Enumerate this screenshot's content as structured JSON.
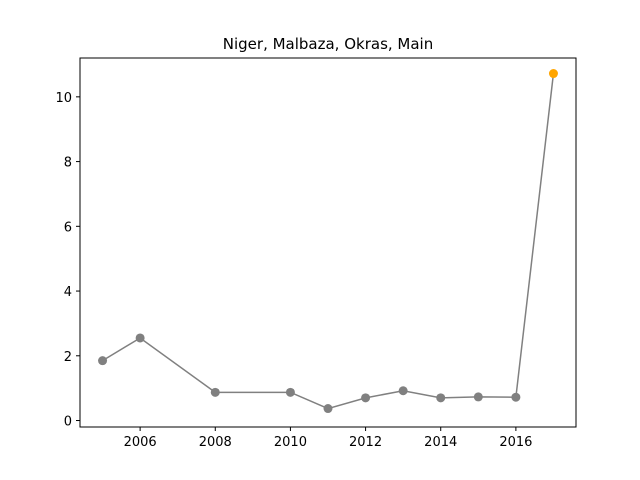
{
  "chart_data": {
    "type": "line",
    "title": "Niger, Malbaza, Okras, Main",
    "xlabel": "",
    "ylabel": "",
    "x": [
      2005,
      2006,
      2008,
      2010,
      2011,
      2012,
      2013,
      2014,
      2015,
      2016,
      2017
    ],
    "series": [
      {
        "values": [
          1.85,
          2.55,
          0.87,
          0.87,
          0.37,
          0.7,
          0.92,
          0.7,
          0.73,
          0.72,
          10.72
        ]
      }
    ],
    "highlight_index": 10,
    "xlim": [
      2004.4,
      2017.6
    ],
    "ylim": [
      -0.2,
      11.2
    ],
    "xticks": [
      2006,
      2008,
      2010,
      2012,
      2014,
      2016
    ],
    "yticks": [
      0,
      2,
      4,
      6,
      8,
      10
    ],
    "grid": false,
    "colors": {
      "line": "#808080",
      "marker": "#808080",
      "highlight": "#ffa500"
    }
  }
}
